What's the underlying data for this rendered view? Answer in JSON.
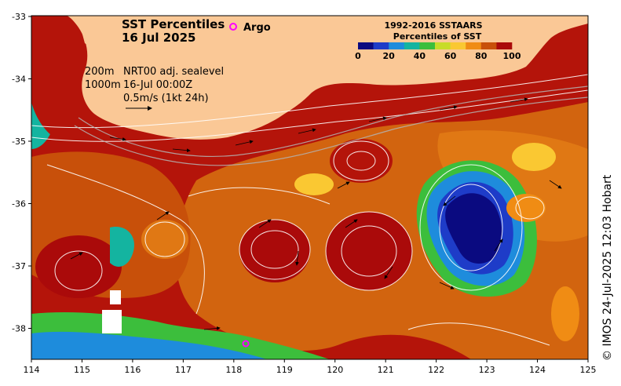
{
  "map": {
    "title_line1": "SST Percentiles",
    "title_line2": "16 Jul 2025",
    "argo_label": "Argo",
    "legend_title_line1": "1992-2016 SSTAARS",
    "legend_title_line2": "Percentiles of SST",
    "legend_ticks": [
      "0",
      "20",
      "40",
      "60",
      "80",
      "100"
    ],
    "legend_colors": [
      "#0a0a80",
      "#1e3cc8",
      "#1e8cdc",
      "#14b4a0",
      "#3cbe3c",
      "#c8dc28",
      "#fac832",
      "#f08c14",
      "#c8500a",
      "#aa0a0a"
    ],
    "info_depth1": "200m",
    "info_depth2": "1000m",
    "info_source": "NRT00 adj. sealevel",
    "info_time": "16-Jul 00:00Z",
    "info_scale": "0.5m/s (1kt 24h)",
    "x_ticks": [
      "114",
      "115",
      "116",
      "117",
      "118",
      "119",
      "120",
      "121",
      "122",
      "123",
      "124",
      "125"
    ],
    "y_ticks": [
      "-33",
      "-34",
      "-35",
      "-36",
      "-37",
      "-38"
    ],
    "credit": "© IMOS 24-Jul-2025 12:03 Hobart",
    "land_color": "#fac896"
  }
}
